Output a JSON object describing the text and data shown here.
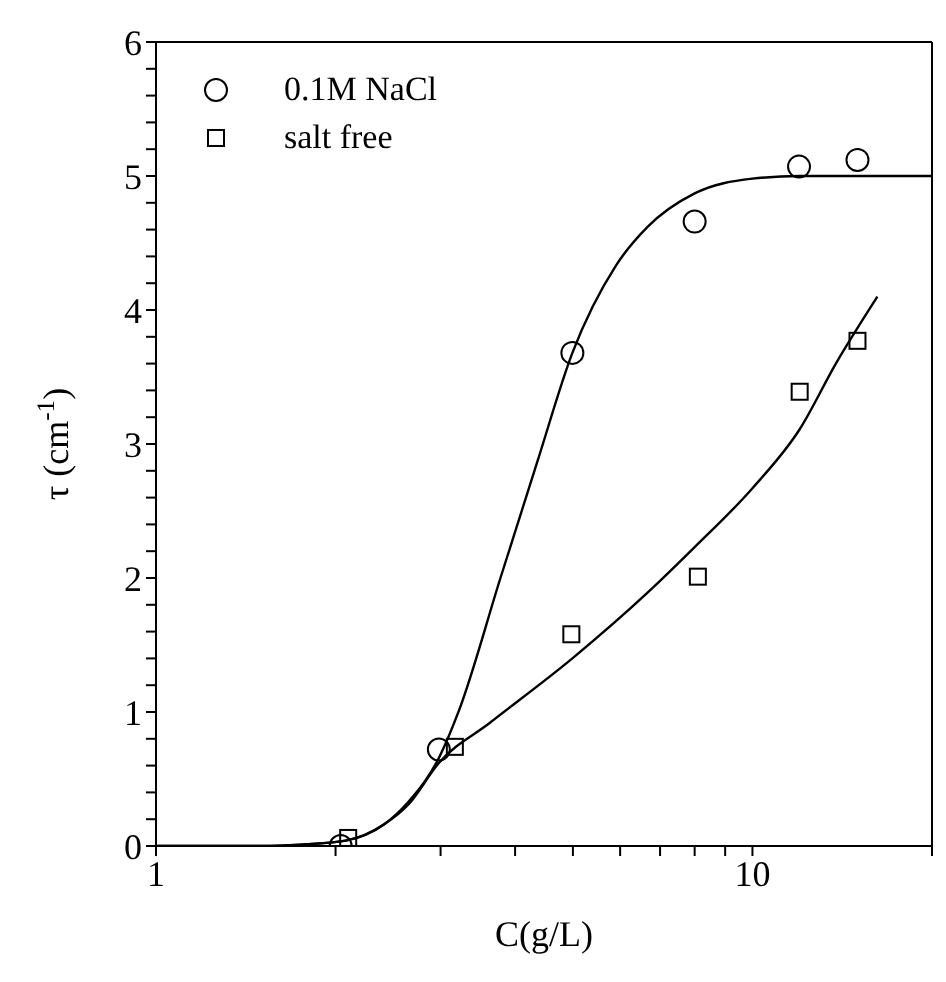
{
  "chart_data": {
    "type": "scatter",
    "xlabel": "C(g/L)",
    "ylabel": "τ (cm$^{-1}$)",
    "log": "x",
    "legend": "top left",
    "xlim": [
      1,
      20
    ],
    "xticks": [
      1,
      {
        "value": 2,
        "label": null
      },
      {
        "value": 3,
        "label": null
      },
      {
        "value": 4,
        "label": null
      },
      {
        "value": 5,
        "label": null
      },
      {
        "value": 6,
        "label": null
      },
      {
        "value": 7,
        "label": null
      },
      {
        "value": 8,
        "label": null
      },
      {
        "value": 9,
        "label": null
      },
      10,
      {
        "value": 20,
        "label": null
      }
    ],
    "ylim": [
      0,
      6
    ],
    "yticks": [
      0,
      {
        "value": 0.2,
        "label": null
      },
      {
        "value": 0.4,
        "label": null
      },
      {
        "value": 0.6,
        "label": null
      },
      {
        "value": 0.8,
        "label": null
      },
      1,
      {
        "value": 1.2,
        "label": null
      },
      {
        "value": 1.4,
        "label": null
      },
      {
        "value": 1.6,
        "label": null
      },
      {
        "value": 1.8,
        "label": null
      },
      2,
      {
        "value": 2.2,
        "label": null
      },
      {
        "value": 2.4,
        "label": null
      },
      {
        "value": 2.6,
        "label": null
      },
      {
        "value": 2.8,
        "label": null
      },
      3,
      {
        "value": 3.2,
        "label": null
      },
      {
        "value": 3.4,
        "label": null
      },
      {
        "value": 3.6,
        "label": null
      },
      {
        "value": 3.8,
        "label": null
      },
      4,
      {
        "value": 4.2,
        "label": null
      },
      {
        "value": 4.4,
        "label": null
      },
      {
        "value": 4.6,
        "label": null
      },
      {
        "value": 4.8,
        "label": null
      },
      5,
      {
        "value": 5.2,
        "label": null
      },
      {
        "value": 5.4,
        "label": null
      },
      {
        "value": 5.6,
        "label": null
      },
      {
        "value": 5.8,
        "label": null
      },
      6
    ],
    "series": [
      {
        "name": "0.1M NaCl",
        "marker": "circle",
        "color": "#000000",
        "x": [
          2.04,
          2.98,
          4.99,
          8.0,
          11.97,
          15.0
        ],
        "values": [
          0.0,
          0.72,
          3.68,
          4.66,
          5.07,
          5.12
        ]
      },
      {
        "name": "salt free",
        "marker": "square",
        "color": "#000000",
        "x": [
          2.1,
          3.17,
          4.97,
          8.1,
          12.0,
          15.0
        ],
        "values": [
          0.06,
          0.74,
          1.58,
          2.01,
          3.39,
          3.77
        ]
      },
      {
        "type": "line",
        "color": "#000000",
        "x": [
          1,
          1.5,
          1.75,
          2.08,
          2.41,
          2.65,
          2.99,
          3.22,
          3.78,
          4.36,
          4.99,
          5.9,
          6.67,
          8.0,
          10,
          12,
          15,
          20
        ],
        "values": [
          0,
          0,
          0.01,
          0.04,
          0.16,
          0.33,
          0.67,
          1.01,
          2.0,
          2.87,
          3.68,
          4.33,
          4.62,
          4.87,
          4.98,
          5.0,
          5.0,
          5.0
        ]
      },
      {
        "type": "line",
        "color": "#000000",
        "x": [
          1,
          1.5,
          1.75,
          2.08,
          2.41,
          2.65,
          2.98,
          3.63,
          4.99,
          6.67,
          8.0,
          10,
          12,
          13.8,
          16.2
        ],
        "values": [
          0,
          0,
          0.01,
          0.04,
          0.16,
          0.31,
          0.62,
          0.92,
          1.4,
          1.89,
          2.23,
          2.67,
          3.11,
          3.6,
          4.1
        ]
      }
    ]
  }
}
